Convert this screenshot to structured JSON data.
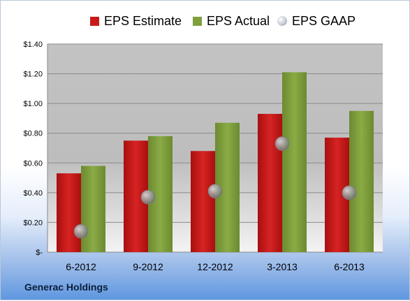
{
  "chart_data": {
    "type": "bar",
    "categories": [
      "6-2012",
      "9-2012",
      "12-2012",
      "3-2013",
      "6-2013"
    ],
    "series": [
      {
        "name": "EPS Estimate",
        "kind": "bar",
        "color": "#c81a1a",
        "values": [
          0.53,
          0.75,
          0.68,
          0.93,
          0.77
        ]
      },
      {
        "name": "EPS Actual",
        "kind": "bar",
        "color": "#7f9f3c",
        "values": [
          0.58,
          0.78,
          0.87,
          1.21,
          0.95
        ]
      },
      {
        "name": "EPS GAAP",
        "kind": "marker",
        "color": "#c4ccd6",
        "values": [
          0.14,
          0.37,
          0.41,
          0.73,
          0.4
        ]
      }
    ],
    "ylim": [
      0,
      1.4
    ],
    "yticks": [
      0,
      0.2,
      0.4,
      0.6,
      0.8,
      1.0,
      1.2,
      1.4
    ],
    "ytick_labels": [
      "$-",
      "$0.20",
      "$0.40",
      "$0.60",
      "$0.80",
      "$1.00",
      "$1.20",
      "$1.40"
    ],
    "grid": true,
    "legend_position": "top"
  },
  "caption": "Generac Holdings"
}
